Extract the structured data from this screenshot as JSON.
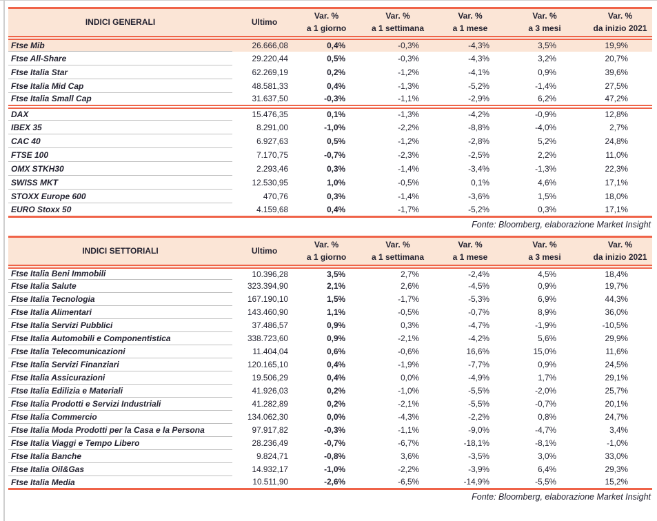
{
  "colors": {
    "accent_line": "#ef6348",
    "header_bg": "#fbe5d6",
    "text": "#232230",
    "row_divider": "#bfbfbf",
    "page_frame": "#cfcfcf"
  },
  "columns": {
    "ultimo_label": "Ultimo",
    "var_label": "Var. %",
    "periods": [
      "a 1 giorno",
      "a 1 settimana",
      "a 1 mese",
      "a 3 mesi",
      "da inizio 2021"
    ]
  },
  "tables": [
    {
      "title": "INDICI GENERALI",
      "source": "Fonte: Bloomberg, elaborazione Market Insight",
      "sections": [
        {
          "rows": [
            {
              "name": "Ftse Mib",
              "highlight": true,
              "values": [
                "26.666,08",
                "0,4%",
                "-0,3%",
                "-4,3%",
                "3,5%",
                "19,9%"
              ]
            },
            {
              "name": "Ftse All-Share",
              "values": [
                "29.220,44",
                "0,5%",
                "-0,3%",
                "-4,3%",
                "3,2%",
                "20,7%"
              ]
            },
            {
              "name": "Ftse Italia Star",
              "values": [
                "62.269,19",
                "0,2%",
                "-1,2%",
                "-4,1%",
                "0,9%",
                "39,6%"
              ]
            },
            {
              "name": "Ftse Italia Mid Cap",
              "values": [
                "48.581,33",
                "0,4%",
                "-1,3%",
                "-5,2%",
                "-1,4%",
                "27,5%"
              ]
            },
            {
              "name": "Ftse Italia Small Cap",
              "values": [
                "31.637,50",
                "-0,3%",
                "-1,1%",
                "-2,9%",
                "6,2%",
                "47,2%"
              ]
            }
          ]
        },
        {
          "rows": [
            {
              "name": "DAX",
              "values": [
                "15.476,35",
                "0,1%",
                "-1,3%",
                "-4,2%",
                "-0,9%",
                "12,8%"
              ]
            },
            {
              "name": "IBEX 35",
              "values": [
                "8.291,00",
                "-1,0%",
                "-2,2%",
                "-8,8%",
                "-4,0%",
                "2,7%"
              ]
            },
            {
              "name": "CAC 40",
              "values": [
                "6.927,63",
                "0,5%",
                "-1,2%",
                "-2,8%",
                "5,2%",
                "24,8%"
              ]
            },
            {
              "name": "FTSE 100",
              "values": [
                "7.170,75",
                "-0,7%",
                "-2,3%",
                "-2,5%",
                "2,2%",
                "11,0%"
              ]
            },
            {
              "name": "OMX STKH30",
              "values": [
                "2.293,46",
                "0,3%",
                "-1,4%",
                "-3,4%",
                "-1,3%",
                "22,3%"
              ]
            },
            {
              "name": "SWISS MKT",
              "values": [
                "12.530,95",
                "1,0%",
                "-0,5%",
                "0,1%",
                "4,6%",
                "17,1%"
              ]
            },
            {
              "name": "STOXX Europe 600",
              "values": [
                "470,76",
                "0,3%",
                "-1,4%",
                "-3,6%",
                "1,5%",
                "18,0%"
              ]
            },
            {
              "name": "EURO Stoxx 50",
              "values": [
                "4.159,68",
                "0,4%",
                "-1,7%",
                "-5,2%",
                "0,3%",
                "17,1%"
              ]
            }
          ]
        }
      ]
    },
    {
      "title": "INDICI SETTORIALI",
      "source": "Fonte: Bloomberg, elaborazione Market Insight",
      "sections": [
        {
          "rows": [
            {
              "name": "Ftse Italia Beni Immobili",
              "values": [
                "10.396,28",
                "3,5%",
                "2,7%",
                "-2,4%",
                "4,5%",
                "18,4%"
              ]
            },
            {
              "name": "Ftse Italia Salute",
              "values": [
                "323.394,90",
                "2,1%",
                "2,6%",
                "-4,5%",
                "0,9%",
                "19,7%"
              ]
            },
            {
              "name": "Ftse Italia Tecnologia",
              "values": [
                "167.190,10",
                "1,5%",
                "-1,7%",
                "-5,3%",
                "6,9%",
                "44,3%"
              ]
            },
            {
              "name": "Ftse Italia Alimentari",
              "values": [
                "143.460,90",
                "1,1%",
                "-0,5%",
                "-0,7%",
                "8,9%",
                "36,0%"
              ]
            },
            {
              "name": "Ftse Italia Servizi Pubblici",
              "values": [
                "37.486,57",
                "0,9%",
                "0,3%",
                "-4,7%",
                "-1,9%",
                "-10,5%"
              ]
            },
            {
              "name": "Ftse Italia Automobili e Componentistica",
              "values": [
                "338.723,60",
                "0,9%",
                "-2,1%",
                "-4,2%",
                "5,6%",
                "29,9%"
              ]
            },
            {
              "name": "Ftse Italia Telecomunicazioni",
              "values": [
                "11.404,04",
                "0,6%",
                "-0,6%",
                "16,6%",
                "15,0%",
                "11,6%"
              ]
            },
            {
              "name": "Ftse Italia Servizi Finanziari",
              "values": [
                "120.165,10",
                "0,4%",
                "-1,9%",
                "-7,7%",
                "0,9%",
                "24,5%"
              ]
            },
            {
              "name": "Ftse Italia Assicurazioni",
              "values": [
                "19.506,29",
                "0,4%",
                "0,0%",
                "-4,9%",
                "1,7%",
                "29,1%"
              ]
            },
            {
              "name": "Ftse Italia Edilizia e Materiali",
              "values": [
                "41.926,03",
                "0,2%",
                "-1,0%",
                "-5,5%",
                "-2,0%",
                "25,7%"
              ]
            },
            {
              "name": "Ftse Italia Prodotti e Servizi Industriali",
              "values": [
                "41.282,89",
                "0,2%",
                "-2,1%",
                "-5,5%",
                "-0,7%",
                "20,1%"
              ]
            },
            {
              "name": "Ftse Italia Commercio",
              "values": [
                "134.062,30",
                "0,0%",
                "-4,3%",
                "-2,2%",
                "0,8%",
                "24,7%"
              ]
            },
            {
              "name": "Ftse Italia Moda Prodotti per la Casa e la Persona",
              "values": [
                "97.917,82",
                "-0,3%",
                "-1,1%",
                "-9,0%",
                "-4,7%",
                "3,4%"
              ]
            },
            {
              "name": "Ftse Italia Viaggi e Tempo Libero",
              "values": [
                "28.236,49",
                "-0,7%",
                "-6,7%",
                "-18,1%",
                "-8,1%",
                "-1,0%"
              ]
            },
            {
              "name": "Ftse Italia Banche",
              "values": [
                "9.824,71",
                "-0,8%",
                "3,6%",
                "-3,5%",
                "3,0%",
                "33,0%"
              ]
            },
            {
              "name": "Ftse Italia Oil&Gas",
              "values": [
                "14.932,17",
                "-1,0%",
                "-2,2%",
                "-3,9%",
                "6,4%",
                "29,3%"
              ]
            },
            {
              "name": "Ftse Italia Media",
              "values": [
                "10.511,90",
                "-2,6%",
                "-6,5%",
                "-14,9%",
                "-5,5%",
                "15,2%"
              ]
            }
          ]
        }
      ]
    }
  ]
}
